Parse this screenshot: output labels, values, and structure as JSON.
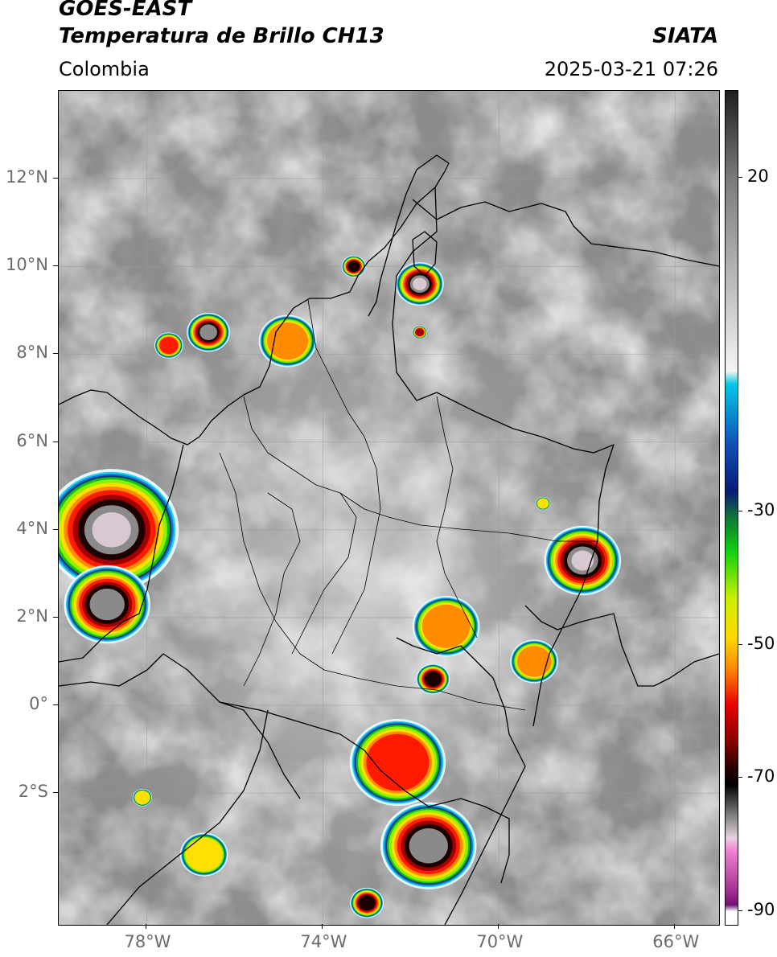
{
  "header": {
    "satellite": "GOES-EAST",
    "product": "Temperatura de Brillo CH13",
    "region": "Colombia",
    "organization": "SIATA",
    "timestamp": "2025-03-21 07:26"
  },
  "map": {
    "extent": {
      "lon_min": -80,
      "lon_max": -65,
      "lat_min": -5,
      "lat_max": 14
    },
    "lat_labels": [
      {
        "value": 12,
        "text": "12°N"
      },
      {
        "value": 10,
        "text": "10°N"
      },
      {
        "value": 8,
        "text": "8°N"
      },
      {
        "value": 6,
        "text": "6°N"
      },
      {
        "value": 4,
        "text": "4°N"
      },
      {
        "value": 2,
        "text": "2°N"
      },
      {
        "value": 0,
        "text": "0°"
      },
      {
        "value": -2,
        "text": "2°S"
      }
    ],
    "lon_labels": [
      {
        "value": -78,
        "text": "78°W"
      },
      {
        "value": -74,
        "text": "74°W"
      },
      {
        "value": -70,
        "text": "70°W"
      },
      {
        "value": -66,
        "text": "66°W"
      }
    ],
    "storm_cells": [
      {
        "lon": -78.8,
        "lat": 4.0,
        "radius_deg": 1.4,
        "intensity": 1.0
      },
      {
        "lon": -78.9,
        "lat": 2.3,
        "radius_deg": 0.9,
        "intensity": 0.9
      },
      {
        "lon": -71.8,
        "lat": 9.6,
        "radius_deg": 0.5,
        "intensity": 1.0
      },
      {
        "lon": -73.3,
        "lat": 10.0,
        "radius_deg": 0.25,
        "intensity": 0.8
      },
      {
        "lon": -76.6,
        "lat": 8.5,
        "radius_deg": 0.45,
        "intensity": 0.9
      },
      {
        "lon": -77.5,
        "lat": 8.2,
        "radius_deg": 0.3,
        "intensity": 0.5
      },
      {
        "lon": -74.8,
        "lat": 8.3,
        "radius_deg": 0.6,
        "intensity": 0.4
      },
      {
        "lon": -68.1,
        "lat": 3.3,
        "radius_deg": 0.8,
        "intensity": 1.0
      },
      {
        "lon": -71.5,
        "lat": 0.6,
        "radius_deg": 0.35,
        "intensity": 0.8
      },
      {
        "lon": -71.6,
        "lat": -3.2,
        "radius_deg": 1.0,
        "intensity": 0.9
      },
      {
        "lon": -72.3,
        "lat": -1.3,
        "radius_deg": 1.0,
        "intensity": 0.5
      },
      {
        "lon": -71.2,
        "lat": 1.8,
        "radius_deg": 0.7,
        "intensity": 0.4
      },
      {
        "lon": -69.2,
        "lat": 1.0,
        "radius_deg": 0.5,
        "intensity": 0.4
      },
      {
        "lon": -73.0,
        "lat": -4.5,
        "radius_deg": 0.35,
        "intensity": 0.8
      },
      {
        "lon": -76.7,
        "lat": -3.4,
        "radius_deg": 0.5,
        "intensity": 0.2
      },
      {
        "lon": -78.1,
        "lat": -2.1,
        "radius_deg": 0.2,
        "intensity": 0.3
      },
      {
        "lon": -71.8,
        "lat": 8.5,
        "radius_deg": 0.15,
        "intensity": 0.6
      },
      {
        "lon": -69.0,
        "lat": 4.6,
        "radius_deg": 0.15,
        "intensity": 0.3
      }
    ]
  },
  "colorbar": {
    "range": [
      -92,
      33
    ],
    "labels": [
      {
        "value": 20,
        "text": "20"
      },
      {
        "value": -30,
        "text": "-30"
      },
      {
        "value": -50,
        "text": "-50"
      },
      {
        "value": -70,
        "text": "-70"
      },
      {
        "value": -90,
        "text": "-90"
      }
    ],
    "stops": [
      {
        "value": 33,
        "color": "#1e1e1e"
      },
      {
        "value": 20,
        "color": "#7a7a7a"
      },
      {
        "value": 5,
        "color": "#b8b8b8"
      },
      {
        "value": -9,
        "color": "#f4f4f4"
      },
      {
        "value": -11,
        "color": "#00c8e8"
      },
      {
        "value": -20,
        "color": "#1050b8"
      },
      {
        "value": -27,
        "color": "#0a1a78"
      },
      {
        "value": -31,
        "color": "#107838"
      },
      {
        "value": -36,
        "color": "#10d010"
      },
      {
        "value": -43,
        "color": "#c8f000"
      },
      {
        "value": -49,
        "color": "#ffd800"
      },
      {
        "value": -54,
        "color": "#ff8000"
      },
      {
        "value": -59,
        "color": "#e80000"
      },
      {
        "value": -64,
        "color": "#900000"
      },
      {
        "value": -69,
        "color": "#200000"
      },
      {
        "value": -71,
        "color": "#000000"
      },
      {
        "value": -76,
        "color": "#8a8a8a"
      },
      {
        "value": -79,
        "color": "#e8d0e0"
      },
      {
        "value": -81,
        "color": "#f080d0"
      },
      {
        "value": -87,
        "color": "#a03090"
      },
      {
        "value": -89,
        "color": "#701070"
      },
      {
        "value": -90,
        "color": "#ffffff"
      }
    ]
  }
}
